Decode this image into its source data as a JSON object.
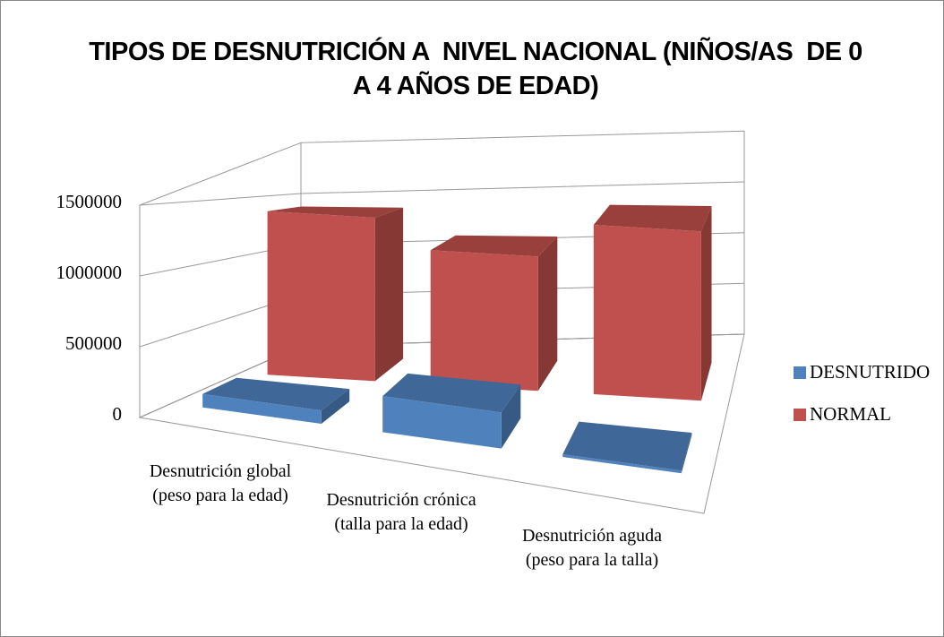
{
  "chart_data": {
    "type": "bar3d",
    "title": "TIPOS DE DESNUTRICIÓN A  NIVEL NACIONAL (NIÑOS/AS  DE 0 A 4 AÑOS DE EDAD)",
    "categories": [
      "Desnutrición global (peso para la edad)",
      "Desnutrición crónica (talla para la edad)",
      "Desnutrición aguda (peso para la talla)"
    ],
    "series": [
      {
        "name": "DESNUTRIDO",
        "color": "#4f81bd",
        "values": [
          100000,
          270000,
          20000
        ]
      },
      {
        "name": "NORMAL",
        "color": "#c0504d",
        "values": [
          1400000,
          1150000,
          1450000
        ]
      }
    ],
    "ylim": [
      0,
      2000000
    ],
    "yticks": [
      0,
      500000,
      1000000,
      1500000
    ],
    "grid": true,
    "legend": "right"
  }
}
